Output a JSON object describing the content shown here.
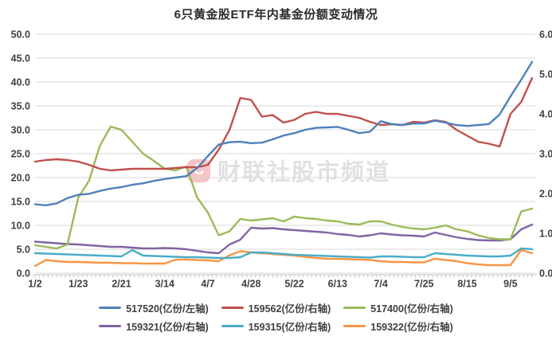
{
  "title": "6只黄金股ETF年内基金份额变动情况",
  "watermark": {
    "logo_glyph": "C",
    "text": "财联社股市频道"
  },
  "colors": {
    "grid": "#d9d9d9",
    "axis_line": "#c6c6c6",
    "tick": "#c6c6c6",
    "axis_text": "#404040"
  },
  "chart_data": {
    "type": "line",
    "title": "6只黄金股ETF年内基金份额变动情况",
    "xlabel": "",
    "grid": true,
    "legend_position": "bottom",
    "x_labels": [
      "1/2",
      "1/23",
      "2/21",
      "3/14",
      "4/7",
      "4/28",
      "5/22",
      "6/13",
      "7/4",
      "7/25",
      "8/15",
      "9/5"
    ],
    "left_axis": {
      "title": "亿份(左轴)",
      "min": 0,
      "max": 50,
      "tick_labels": [
        "50.0",
        "45.0",
        "40.0",
        "35.0",
        "30.0",
        "25.0",
        "20.0",
        "15.0",
        "10.0",
        "5.0",
        "0.0"
      ]
    },
    "right_axis": {
      "title": "亿份(右轴)",
      "min": 0,
      "max": 6,
      "tick_labels": [
        "6.0",
        "5.0",
        "4.0",
        "3.0",
        "2.0",
        "1.0",
        "0.0"
      ]
    },
    "series": [
      {
        "name": "517520(亿份/左轴)",
        "axis": "left",
        "color": "#4F81BD",
        "values": [
          14.4,
          14.2,
          14.6,
          15.7,
          16.4,
          16.6,
          17.2,
          17.7,
          18.0,
          18.5,
          18.8,
          19.3,
          19.7,
          20.0,
          20.3,
          22.0,
          24.5,
          26.9,
          27.4,
          27.5,
          27.2,
          27.3,
          28.0,
          28.8,
          29.3,
          30.0,
          30.4,
          30.5,
          30.6,
          30.0,
          29.3,
          29.6,
          31.8,
          31.2,
          31.0,
          31.3,
          31.3,
          31.9,
          31.5,
          31.0,
          30.8,
          31.0,
          31.2,
          33.2,
          37.0,
          40.5,
          44.2
        ]
      },
      {
        "name": "159562(亿份/右轴)",
        "axis": "right",
        "color": "#C0504D",
        "values": [
          2.8,
          2.84,
          2.86,
          2.84,
          2.8,
          2.72,
          2.62,
          2.58,
          2.6,
          2.62,
          2.62,
          2.62,
          2.62,
          2.64,
          2.66,
          2.66,
          2.72,
          3.1,
          3.6,
          4.4,
          4.35,
          3.93,
          3.97,
          3.78,
          3.85,
          4.0,
          4.05,
          4.0,
          4.0,
          3.95,
          3.9,
          3.8,
          3.72,
          3.74,
          3.72,
          3.8,
          3.78,
          3.84,
          3.8,
          3.6,
          3.45,
          3.3,
          3.25,
          3.18,
          4.0,
          4.3,
          4.9
        ]
      },
      {
        "name": "517400(亿份/右轴)",
        "axis": "right",
        "color": "#9BBB59",
        "values": [
          0.7,
          0.66,
          0.62,
          0.72,
          1.9,
          2.32,
          3.2,
          3.68,
          3.6,
          3.3,
          3.0,
          2.82,
          2.62,
          2.58,
          2.68,
          1.9,
          1.52,
          0.95,
          1.05,
          1.36,
          1.32,
          1.35,
          1.38,
          1.3,
          1.42,
          1.38,
          1.36,
          1.32,
          1.3,
          1.24,
          1.22,
          1.3,
          1.3,
          1.22,
          1.16,
          1.12,
          1.1,
          1.14,
          1.2,
          1.1,
          1.05,
          0.95,
          0.88,
          0.85,
          0.85,
          1.55,
          1.62
        ]
      },
      {
        "name": "159321(亿份/右轴)",
        "axis": "right",
        "color": "#8064A2",
        "values": [
          0.79,
          0.77,
          0.75,
          0.73,
          0.72,
          0.7,
          0.68,
          0.66,
          0.66,
          0.64,
          0.62,
          0.62,
          0.63,
          0.62,
          0.6,
          0.56,
          0.52,
          0.5,
          0.72,
          0.84,
          1.14,
          1.12,
          1.13,
          1.1,
          1.08,
          1.06,
          1.04,
          1.02,
          0.98,
          0.96,
          0.92,
          0.95,
          1.0,
          0.97,
          0.95,
          0.94,
          0.92,
          1.02,
          0.96,
          0.9,
          0.86,
          0.83,
          0.82,
          0.82,
          0.85,
          1.1,
          1.22
        ]
      },
      {
        "name": "159315(亿份/右轴)",
        "axis": "right",
        "color": "#4BACC6",
        "values": [
          0.5,
          0.49,
          0.48,
          0.47,
          0.46,
          0.45,
          0.44,
          0.43,
          0.42,
          0.58,
          0.44,
          0.43,
          0.42,
          0.41,
          0.4,
          0.4,
          0.39,
          0.38,
          0.38,
          0.4,
          0.52,
          0.52,
          0.5,
          0.48,
          0.46,
          0.45,
          0.44,
          0.43,
          0.42,
          0.41,
          0.4,
          0.39,
          0.42,
          0.42,
          0.41,
          0.4,
          0.4,
          0.5,
          0.48,
          0.46,
          0.44,
          0.43,
          0.42,
          0.42,
          0.44,
          0.62,
          0.6
        ]
      },
      {
        "name": "159322(亿份/右轴)",
        "axis": "right",
        "color": "#F79646",
        "values": [
          0.18,
          0.33,
          0.3,
          0.28,
          0.28,
          0.27,
          0.26,
          0.26,
          0.25,
          0.25,
          0.24,
          0.24,
          0.24,
          0.34,
          0.34,
          0.33,
          0.32,
          0.3,
          0.45,
          0.55,
          0.52,
          0.5,
          0.48,
          0.46,
          0.44,
          0.41,
          0.38,
          0.36,
          0.36,
          0.35,
          0.34,
          0.33,
          0.3,
          0.28,
          0.28,
          0.27,
          0.27,
          0.36,
          0.33,
          0.3,
          0.25,
          0.22,
          0.2,
          0.2,
          0.2,
          0.58,
          0.5
        ]
      }
    ]
  }
}
